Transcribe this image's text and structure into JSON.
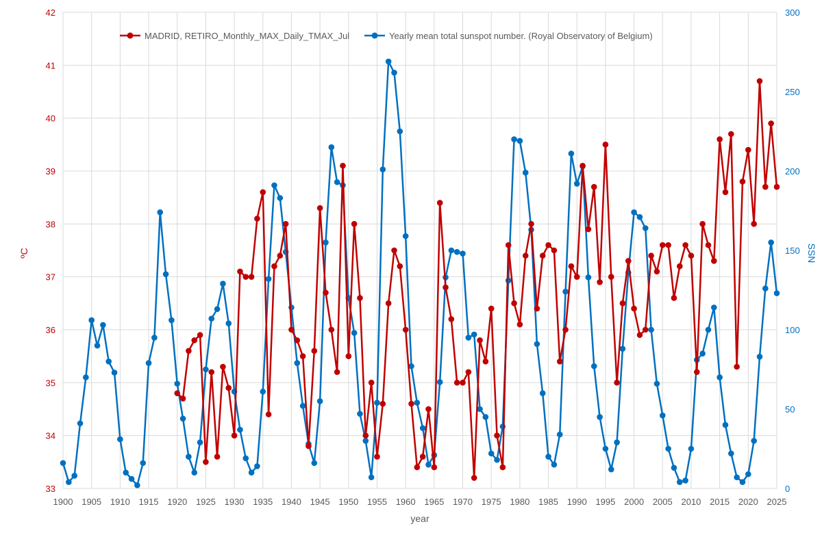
{
  "chart_data": {
    "type": "line",
    "title": "",
    "xlabel": "year",
    "ylabel_left": "ºC",
    "ylabel_right": "SSN",
    "xlim": [
      1900,
      2025
    ],
    "ylim_left": [
      33,
      42
    ],
    "ylim_right": [
      0,
      300
    ],
    "x_ticks": [
      1900,
      1905,
      1910,
      1915,
      1920,
      1925,
      1930,
      1935,
      1940,
      1945,
      1950,
      1955,
      1960,
      1965,
      1970,
      1975,
      1980,
      1985,
      1990,
      1995,
      2000,
      2005,
      2010,
      2015,
      2020,
      2025
    ],
    "y_ticks_left": [
      33,
      34,
      35,
      36,
      37,
      38,
      39,
      40,
      41,
      42
    ],
    "y_ticks_right": [
      0,
      50,
      100,
      150,
      200,
      250,
      300
    ],
    "grid": true,
    "legend_position": "top",
    "colors": {
      "temperature": "#c00000",
      "sunspots": "#0070c0",
      "grid": "#d9d9d9",
      "axis_text": "#595959"
    },
    "series": [
      {
        "name": "MADRID, RETIRO_Monthly_MAX_Daily_TMAX_Jul",
        "axis": "left",
        "x_start": 1920,
        "values": [
          34.8,
          34.7,
          35.6,
          35.8,
          35.9,
          33.5,
          35.2,
          33.6,
          35.3,
          34.9,
          34.0,
          37.1,
          37.0,
          37.0,
          38.1,
          38.6,
          34.4,
          37.2,
          37.4,
          38.0,
          36.0,
          35.8,
          35.5,
          33.8,
          35.6,
          38.3,
          36.7,
          36.0,
          35.2,
          39.1,
          35.5,
          38.0,
          36.6,
          34.0,
          35.0,
          33.6,
          34.6,
          36.5,
          37.5,
          37.2,
          36.0,
          34.6,
          33.4,
          33.6,
          34.5,
          33.4,
          38.4,
          36.8,
          36.2,
          35.0,
          35.0,
          35.2,
          33.2,
          35.8,
          35.4,
          36.4,
          34.0,
          33.4,
          37.6,
          36.5,
          36.1,
          37.4,
          38.0,
          36.4,
          37.4,
          37.6,
          37.5,
          35.4,
          36.0,
          37.2,
          37.0,
          39.1,
          37.9,
          38.7,
          36.9,
          39.5,
          37.0,
          35.0,
          36.5,
          37.3,
          36.4,
          35.9,
          36.0,
          37.4,
          37.1,
          37.6,
          37.6,
          36.6,
          37.2,
          37.6,
          37.4,
          35.2,
          38.0,
          37.6,
          37.3,
          39.6,
          38.6,
          39.7,
          35.3,
          38.8,
          39.4,
          38.0,
          40.7,
          38.7,
          39.9,
          38.7
        ]
      },
      {
        "name": "Yearly mean total sunspot number. (Royal Observatory of Belgium)",
        "axis": "right",
        "x_start": 1900,
        "values": [
          16,
          4,
          8,
          41,
          70,
          106,
          90,
          103,
          80,
          73,
          31,
          10,
          6,
          2,
          16,
          79,
          95,
          174,
          135,
          106,
          66,
          44,
          20,
          10,
          29,
          75,
          107,
          113,
          129,
          104,
          61,
          37,
          19,
          10,
          14,
          61,
          132,
          191,
          183,
          149,
          114,
          79,
          52,
          28,
          16,
          55,
          155,
          215,
          193,
          191,
          120,
          98,
          47,
          30,
          7,
          54,
          201,
          269,
          262,
          225,
          159,
          77,
          54,
          38,
          15,
          21,
          67,
          133,
          150,
          149,
          148,
          95,
          97,
          50,
          45,
          22,
          18,
          39,
          131,
          220,
          219,
          199,
          163,
          91,
          60,
          20,
          15,
          34,
          124,
          211,
          192,
          203,
          133,
          77,
          45,
          25,
          12,
          29,
          88,
          136,
          174,
          171,
          164,
          100,
          66,
          46,
          25,
          13,
          4,
          5,
          25,
          81,
          85,
          100,
          114,
          70,
          40,
          22,
          7,
          4,
          9,
          30,
          83,
          126,
          155,
          123
        ]
      }
    ]
  }
}
